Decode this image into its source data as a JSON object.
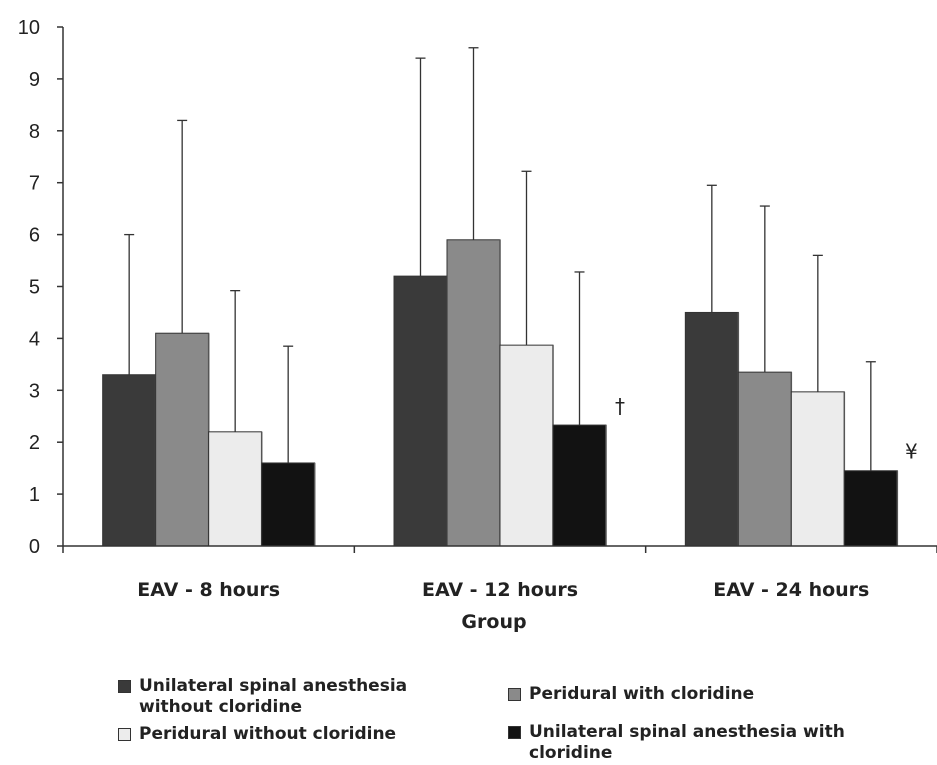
{
  "chart_data": {
    "type": "bar",
    "title": "",
    "xlabel": "Group",
    "ylabel": "",
    "ylim": [
      0,
      10
    ],
    "yticks": [
      "0",
      "1",
      "2",
      "3",
      "4",
      "5",
      "6",
      "7",
      "8",
      "9",
      "10"
    ],
    "categories": [
      "EAV -  8 hours",
      "EAV -  12 hours",
      "EAV -  24 hours"
    ],
    "grid": false,
    "legend_position": "bottom",
    "series": [
      {
        "name": "Unilateral spinal anesthesia without cloridine",
        "color": "#3a3a3a",
        "values": [
          3.3,
          5.2,
          4.5
        ],
        "error_upper": [
          6.0,
          9.4,
          6.95
        ]
      },
      {
        "name": "Peridural with cloridine",
        "color": "#8a8a8a",
        "values": [
          4.1,
          5.9,
          3.35
        ],
        "error_upper": [
          8.2,
          9.6,
          6.55
        ]
      },
      {
        "name": "Peridural  without  cloridine",
        "color": "#ececec",
        "values": [
          2.2,
          3.87,
          2.97
        ],
        "error_upper": [
          4.92,
          7.22,
          5.6
        ]
      },
      {
        "name": "Unilateral spinal anesthesia with cloridine",
        "color": "#121212",
        "values": [
          1.6,
          2.33,
          1.45
        ],
        "error_upper": [
          3.85,
          5.28,
          3.55
        ]
      }
    ],
    "annotations": [
      {
        "text": "†",
        "category_index": 1,
        "series_index": 3
      },
      {
        "text": "¥",
        "category_index": 2,
        "series_index": 3
      }
    ]
  },
  "legend": {
    "items": [
      {
        "label": "Unilateral spinal anesthesia without cloridine",
        "color": "#3a3a3a"
      },
      {
        "label": "Peridural with cloridine",
        "color": "#8a8a8a"
      },
      {
        "label": "Peridural  without  cloridine",
        "color": "#ececec"
      },
      {
        "label": "Unilateral spinal anesthesia with cloridine",
        "color": "#121212"
      }
    ]
  }
}
